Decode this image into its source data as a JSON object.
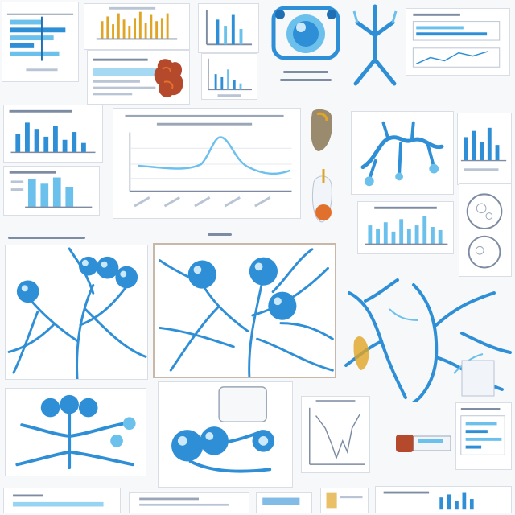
{
  "colors": {
    "background": "#f7f8fa",
    "tile_background": "#ffffff",
    "tile_border": "#d8dde6",
    "blue": "#2f8fd6",
    "light_blue": "#6bc0ec",
    "deep_blue": "#1f6fb5",
    "orange": "#e2702d",
    "rust": "#b5492b",
    "gold": "#e0a526",
    "grey_text": "#8a97aa"
  },
  "icons": [
    "blue-branching-vessel-icon",
    "blue-bubble-cluster-icon",
    "line-graph-icon",
    "bar-chart-icon",
    "organ-illustration-icon",
    "seed-illustration-icon"
  ]
}
